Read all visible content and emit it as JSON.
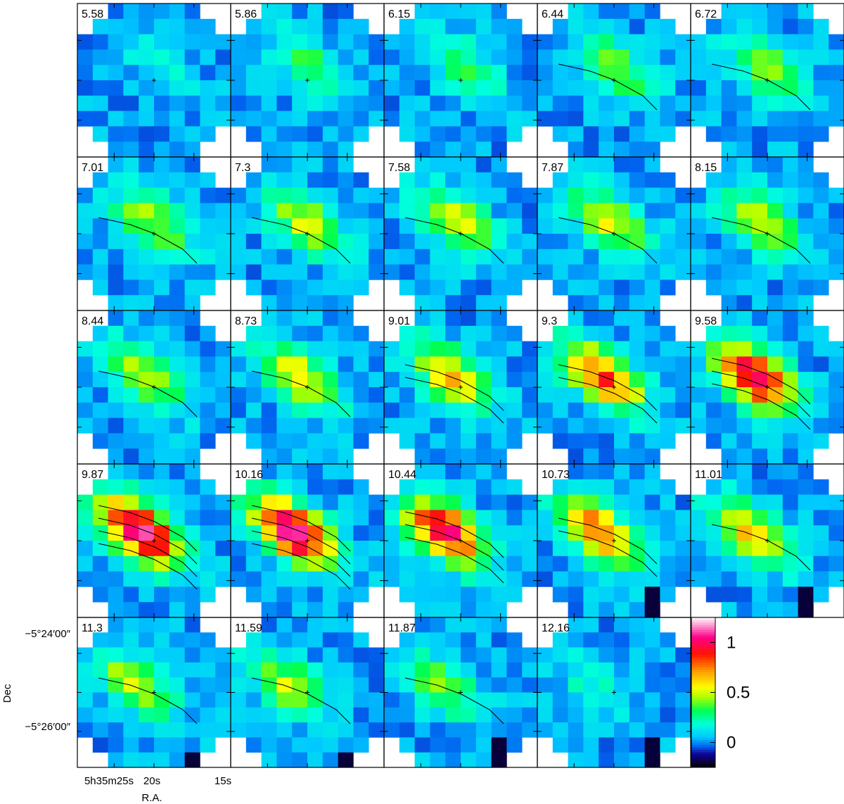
{
  "chart_data": {
    "type": "heatmap",
    "layout": {
      "rows": 5,
      "cols": 5
    },
    "panels": [
      {
        "label": "5.58",
        "peak": 0.12
      },
      {
        "label": "5.86",
        "peak": 0.3
      },
      {
        "label": "6.15",
        "peak": 0.3
      },
      {
        "label": "6.44",
        "peak": 0.38
      },
      {
        "label": "6.72",
        "peak": 0.38
      },
      {
        "label": "7.01",
        "peak": 0.45
      },
      {
        "label": "7.3",
        "peak": 0.48
      },
      {
        "label": "7.58",
        "peak": 0.5
      },
      {
        "label": "7.87",
        "peak": 0.52
      },
      {
        "label": "8.15",
        "peak": 0.5
      },
      {
        "label": "8.44",
        "peak": 0.5
      },
      {
        "label": "8.73",
        "peak": 0.55
      },
      {
        "label": "9.01",
        "peak": 0.65
      },
      {
        "label": "9.3",
        "peak": 0.85
      },
      {
        "label": "9.58",
        "peak": 1.0
      },
      {
        "label": "9.87",
        "peak": 1.15
      },
      {
        "label": "10.16",
        "peak": 1.15
      },
      {
        "label": "10.44",
        "peak": 1.0
      },
      {
        "label": "10.73",
        "peak": 0.8
      },
      {
        "label": "11.01",
        "peak": 0.6
      },
      {
        "label": "11.3",
        "peak": 0.5
      },
      {
        "label": "11.59",
        "peak": 0.45
      },
      {
        "label": "11.87",
        "peak": 0.4
      },
      {
        "label": "12.16",
        "peak": 0.15
      }
    ],
    "colorbar": {
      "min": -0.25,
      "max": 1.25,
      "ticks": [
        {
          "value": 1,
          "label": "1"
        },
        {
          "value": 0.5,
          "label": "0.5"
        },
        {
          "value": 0,
          "label": "0"
        }
      ]
    },
    "y_axis": {
      "label": "Dec",
      "tick_labels": [
        "−5°24′00″",
        "−5°26′00″"
      ]
    },
    "x_axis": {
      "label": "R.A.",
      "tick_labels": [
        "5h35m25s",
        "20s",
        "15s"
      ]
    },
    "grid": false
  }
}
